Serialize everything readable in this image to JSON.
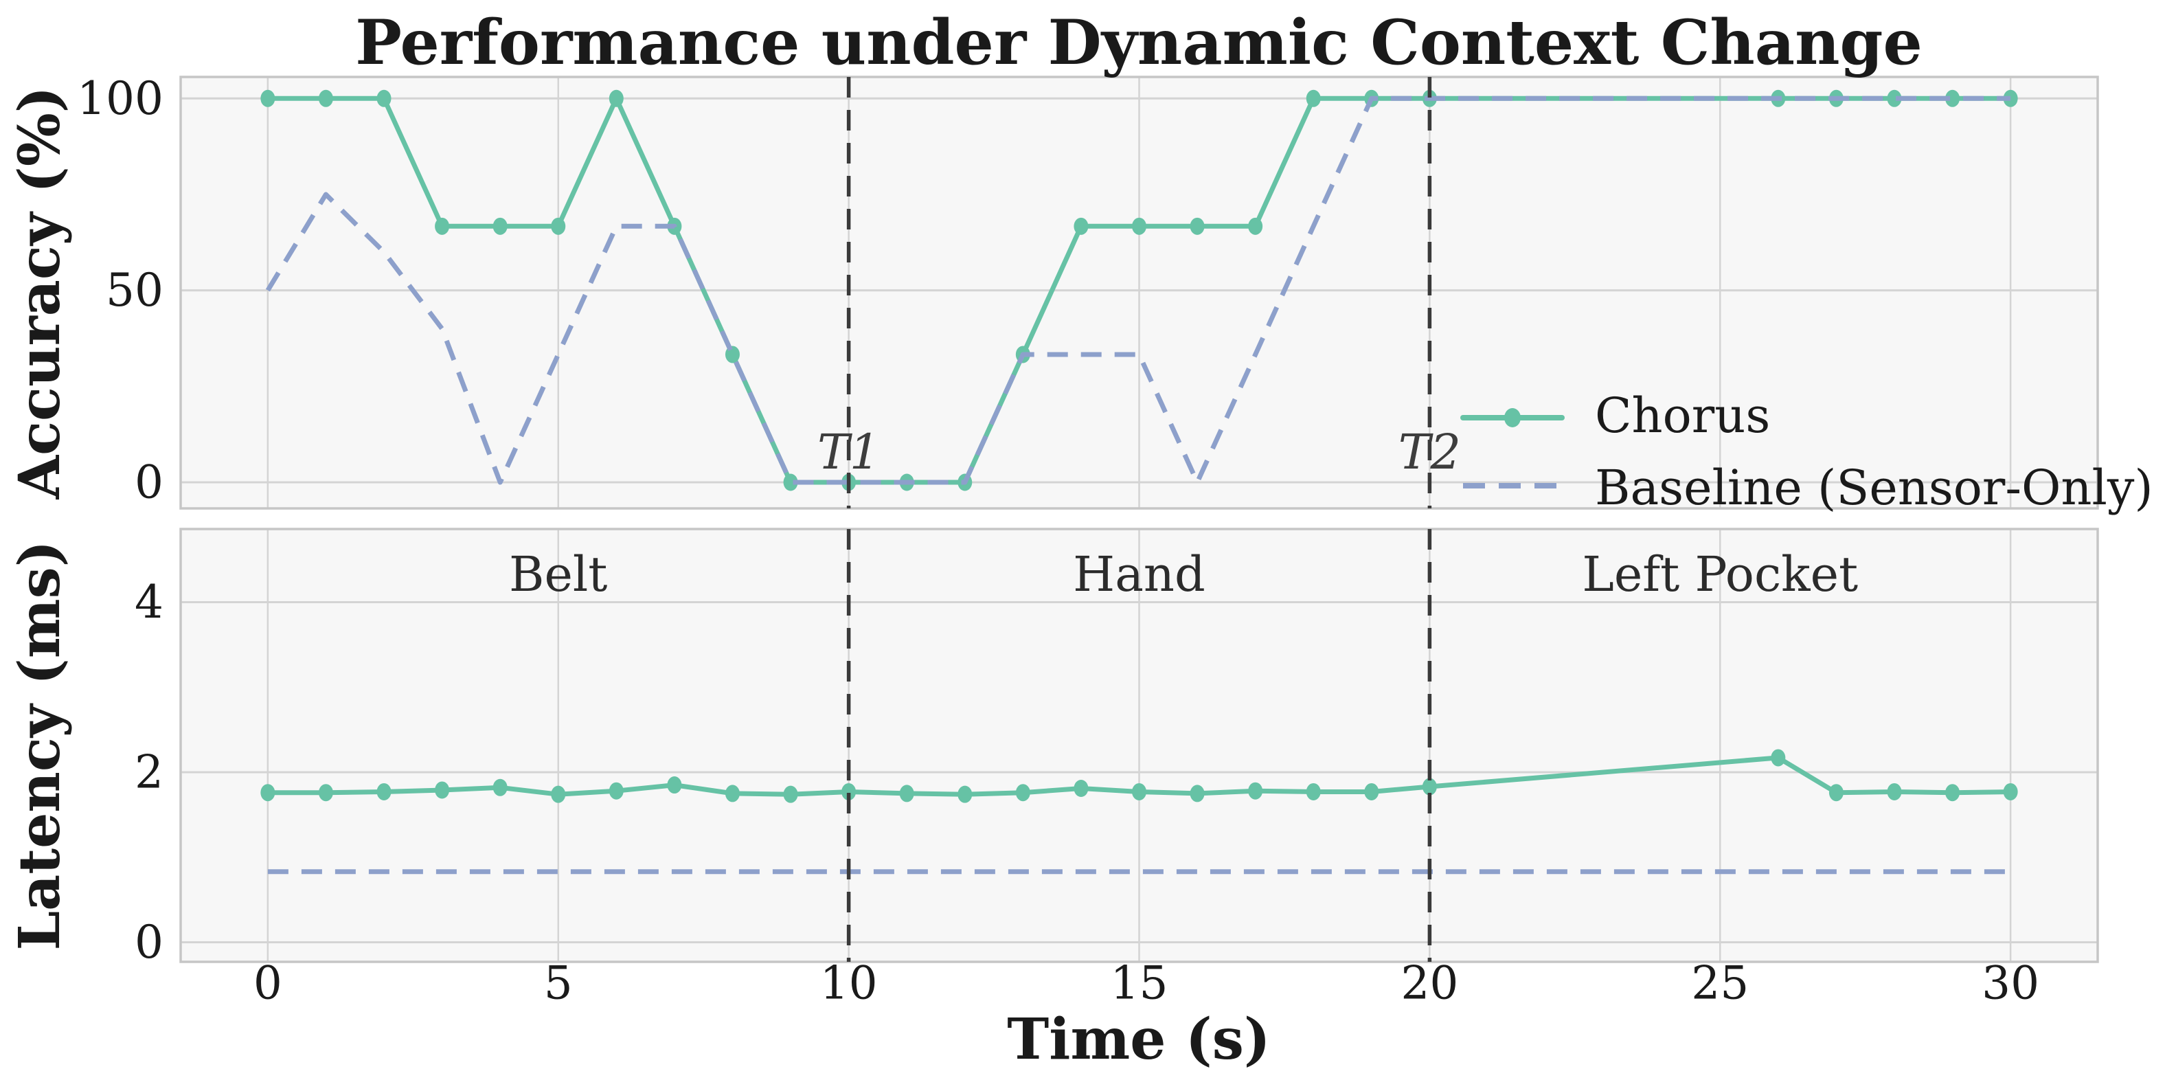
{
  "title": "Performance under Dynamic Context Change",
  "colors": {
    "chorus": "#66c2a5",
    "baseline": "#8da0cb",
    "transition_line": "#3a3a3a",
    "grid": "#d4d4d4",
    "spine": "#c6c6c6",
    "plot_background": "#f7f7f7",
    "text": "#1a1a1a"
  },
  "legend": {
    "items": [
      {
        "label": "Chorus",
        "style": "solid-with-marker",
        "color": "#66c2a5"
      },
      {
        "label": "Baseline (Sensor-Only)",
        "style": "dashed",
        "color": "#8da0cb"
      }
    ]
  },
  "annotations": {
    "t1": {
      "label": "T1",
      "time": 10
    },
    "t2": {
      "label": "T2",
      "time": 20
    }
  },
  "context_labels": [
    {
      "text": "Belt",
      "time_center": 5
    },
    {
      "text": "Hand",
      "time_center": 15
    },
    {
      "text": "Left Pocket",
      "time_center": 25
    }
  ],
  "chart_data": [
    {
      "type": "line",
      "panel": "accuracy",
      "ylabel": "Accuracy (%)",
      "xlim": [
        -1.5,
        31.5
      ],
      "ylim": [
        -6.8,
        105.6
      ],
      "yticks": [
        0,
        50,
        100
      ],
      "xgrid": [
        0,
        5,
        10,
        15,
        20,
        25,
        30
      ],
      "grid": true,
      "x": [
        0,
        1,
        2,
        3,
        4,
        5,
        6,
        7,
        8,
        9,
        10,
        11,
        12,
        13,
        14,
        15,
        16,
        17,
        18,
        19,
        20,
        21,
        22,
        23,
        24,
        25,
        26,
        27,
        28,
        29,
        30
      ],
      "series": [
        {
          "name": "Chorus",
          "color": "#66c2a5",
          "style": "solid",
          "marker": true,
          "values": [
            100,
            100,
            100,
            66.7,
            66.7,
            66.7,
            100,
            66.7,
            33.3,
            0,
            0,
            0,
            0,
            33.3,
            66.7,
            66.7,
            66.7,
            66.7,
            100,
            100,
            100,
            null,
            null,
            null,
            null,
            null,
            100,
            100,
            100,
            100,
            100
          ]
        },
        {
          "name": "Baseline (Sensor-Only)",
          "color": "#8da0cb",
          "style": "dashed",
          "marker": false,
          "values": [
            50,
            75,
            60,
            40,
            0,
            33.3,
            66.7,
            66.7,
            33.3,
            0,
            0,
            0,
            0,
            33.3,
            33.3,
            33.3,
            0,
            33.3,
            66.7,
            100,
            100,
            100,
            100,
            100,
            100,
            100,
            100,
            100,
            100,
            100,
            100
          ]
        }
      ]
    },
    {
      "type": "line",
      "panel": "latency",
      "ylabel": "Latency (ms)",
      "xlabel": "Time (s)",
      "xlim": [
        -1.5,
        31.5
      ],
      "ylim": [
        -0.23,
        4.86
      ],
      "yticks": [
        0,
        2,
        4
      ],
      "xticks": [
        0,
        5,
        10,
        15,
        20,
        25,
        30
      ],
      "xgrid": [
        0,
        5,
        10,
        15,
        20,
        25,
        30
      ],
      "grid": true,
      "x": [
        0,
        1,
        2,
        3,
        4,
        5,
        6,
        7,
        8,
        9,
        10,
        11,
        12,
        13,
        14,
        15,
        16,
        17,
        18,
        19,
        20,
        21,
        22,
        23,
        24,
        25,
        26,
        27,
        28,
        29,
        30
      ],
      "series": [
        {
          "name": "Chorus",
          "color": "#66c2a5",
          "style": "solid",
          "marker": true,
          "values": [
            1.76,
            1.76,
            1.77,
            1.79,
            1.82,
            1.74,
            1.78,
            1.85,
            1.75,
            1.74,
            1.77,
            1.75,
            1.74,
            1.76,
            1.81,
            1.77,
            1.75,
            1.78,
            1.77,
            1.77,
            1.83,
            null,
            null,
            null,
            null,
            null,
            2.17,
            1.76,
            1.77,
            1.76,
            1.77
          ]
        },
        {
          "name": "Baseline (Sensor-Only)",
          "color": "#8da0cb",
          "style": "dashed",
          "marker": false,
          "values": [
            0.83,
            0.83,
            0.83,
            0.83,
            0.83,
            0.83,
            0.83,
            0.83,
            0.83,
            0.83,
            0.83,
            0.83,
            0.83,
            0.83,
            0.83,
            0.83,
            0.83,
            0.83,
            0.83,
            0.83,
            0.83,
            0.83,
            0.83,
            0.83,
            0.83,
            0.83,
            0.83,
            0.83,
            0.83,
            0.83,
            0.83
          ]
        }
      ]
    }
  ]
}
